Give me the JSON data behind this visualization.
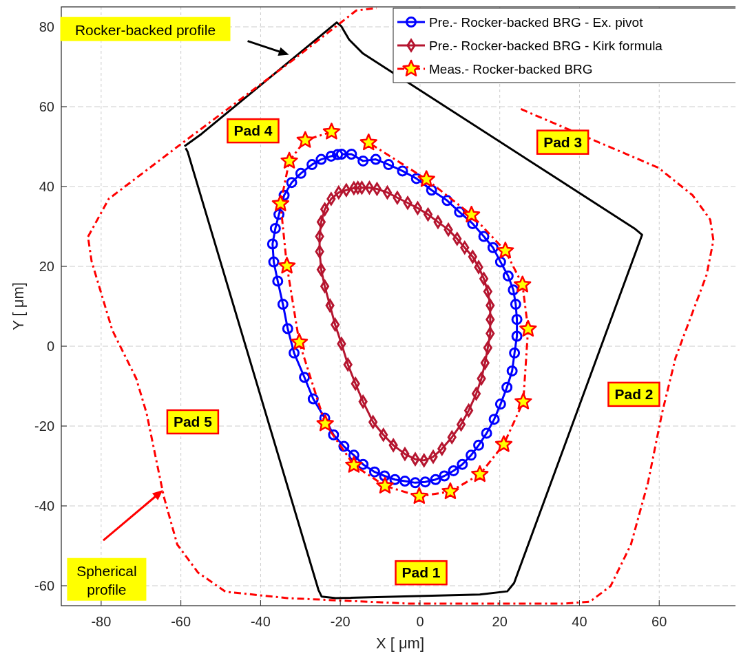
{
  "chart_data": {
    "type": "line",
    "xlabel": "X [ μm]",
    "ylabel": "Y [ μm]",
    "xlim": [
      -90,
      80
    ],
    "ylim": [
      -65,
      85
    ],
    "xticks": [
      -80,
      -60,
      -40,
      -20,
      0,
      20,
      40,
      60
    ],
    "yticks": [
      -60,
      -40,
      -20,
      0,
      20,
      40,
      60,
      80
    ],
    "grid": true,
    "legend": "top right",
    "series": [
      {
        "color": "#000000",
        "marker": "none",
        "line_style": "solid",
        "x": [
          -59.1,
          -54.8,
          -20.9,
          -19.8,
          -17.8,
          -14.3,
          53.8,
          55.7,
          23.6,
          21.9,
          15.0,
          -21.2,
          -24.7,
          -25.5,
          -58.3,
          -58.8
        ],
        "values": [
          50.1,
          53.2,
          81.1,
          80.2,
          76.8,
          73.3,
          29.5,
          27.9,
          -59.3,
          -61.4,
          -62.2,
          -63.1,
          -62.7,
          -61.0,
          48.7,
          49.6
        ]
      },
      {
        "color": "#ff0000",
        "marker": "none",
        "line_style": "dashed",
        "x": [
          -83.3,
          -78.1,
          -59.1,
          -31.6,
          -16.0,
          -10.9,
          null,
          25.3,
          59.8,
          68.4,
          72.8,
          73.6,
          71.9,
          64.1,
          60.7,
          57.2,
          52.9,
          47.8,
          42.6,
          35.7,
          -2.2,
          -33.3,
          -48.8,
          -55.7,
          -60.9,
          -64.3,
          -68.6,
          -71.2,
          -77.2,
          -82.4,
          -83.3
        ],
        "values": [
          27.4,
          36.9,
          51.3,
          71.9,
          84.1,
          84.7,
          null,
          59.4,
          44.7,
          37.8,
          31.7,
          26.5,
          17.9,
          -2.9,
          -16.8,
          -34.1,
          -49.7,
          -60.1,
          -64.0,
          -64.5,
          -64.5,
          -63.1,
          -61.5,
          -56.7,
          -49.7,
          -37.6,
          -16.8,
          -8.1,
          4.0,
          21.3,
          27.4
        ]
      },
      {
        "name": "Pre.- Rocker-backed BRG - Ex. pivot",
        "color": "#0000ff",
        "marker": "circle",
        "line_style": "solid",
        "x": [
          -19.7,
          -17.2,
          -14.3,
          -11.1,
          -7.9,
          -4.4,
          -0.9,
          2.9,
          6.8,
          9.9,
          13.2,
          16.0,
          18.3,
          20.2,
          22.1,
          23.4,
          24.0,
          24.3,
          24.3,
          23.7,
          23.1,
          21.8,
          20.2,
          18.6,
          16.7,
          14.7,
          12.8,
          10.6,
          8.4,
          6.1,
          3.9,
          1.3,
          -1.2,
          -3.8,
          -6.3,
          -8.9,
          -11.4,
          -14.3,
          -16.6,
          -19.1,
          -21.7,
          -23.9,
          -26.8,
          -29.0,
          -31.6,
          -33.2,
          -34.4,
          -35.7,
          -36.7,
          -37.0,
          -36.3,
          -35.4,
          -34.1,
          -32.2,
          -29.9,
          -27.1,
          -24.8,
          -22.3,
          -20.7
        ],
        "values": [
          48.1,
          48.1,
          46.4,
          46.8,
          45.5,
          43.9,
          42.0,
          39.1,
          36.5,
          33.6,
          30.7,
          27.5,
          24.7,
          21.1,
          17.6,
          14.1,
          10.5,
          6.7,
          2.5,
          -1.7,
          -6.2,
          -10.3,
          -14.5,
          -18.3,
          -21.8,
          -24.8,
          -27.3,
          -29.6,
          -31.2,
          -32.5,
          -33.4,
          -34.0,
          -34.2,
          -33.8,
          -33.4,
          -32.5,
          -31.5,
          -29.6,
          -27.3,
          -25.1,
          -22.2,
          -18.0,
          -13.2,
          -7.8,
          -1.7,
          4.4,
          10.5,
          16.3,
          21.1,
          25.6,
          29.5,
          33.0,
          37.8,
          41.0,
          43.3,
          45.5,
          46.8,
          47.6,
          48.0
        ]
      },
      {
        "name": "Pre.- Rocker-backed BRG - Kirk formula",
        "color": "#b5152f",
        "marker": "diamond",
        "line_style": "solid",
        "x": [
          -14.6,
          -12.7,
          -10.8,
          -8.2,
          -5.7,
          -3.1,
          -0.6,
          2.0,
          4.5,
          7.1,
          9.3,
          11.2,
          13.2,
          14.7,
          16.0,
          17.0,
          17.6,
          17.6,
          17.6,
          17.0,
          16.3,
          15.4,
          14.1,
          12.2,
          10.3,
          8.0,
          5.5,
          3.3,
          1.0,
          -1.2,
          -3.8,
          -6.7,
          -9.2,
          -11.8,
          -14.3,
          -16.2,
          -18.1,
          -19.7,
          -21.3,
          -22.6,
          -23.9,
          -24.8,
          -25.2,
          -25.2,
          -24.8,
          -23.9,
          -22.3,
          -20.4,
          -18.5,
          -16.6,
          -15.6
        ],
        "values": [
          39.7,
          39.7,
          39.4,
          38.5,
          37.2,
          35.9,
          34.6,
          33.0,
          31.1,
          29.2,
          26.9,
          24.7,
          22.4,
          19.8,
          16.9,
          13.7,
          10.2,
          6.7,
          3.2,
          -0.4,
          -4.2,
          -8.1,
          -11.9,
          -16.1,
          -19.6,
          -22.8,
          -25.7,
          -27.7,
          -28.6,
          -28.3,
          -27.0,
          -24.8,
          -22.2,
          -19.0,
          -13.9,
          -9.4,
          -4.6,
          0.6,
          5.4,
          10.2,
          15.0,
          19.2,
          23.7,
          27.5,
          31.1,
          34.3,
          36.9,
          38.5,
          39.1,
          39.6,
          39.7
        ]
      },
      {
        "name": "Meas.- Rocker-backed BRG",
        "color": "#ff0000",
        "marker": "star",
        "line_style": "dashed",
        "x": [
          -22.2,
          -28.8,
          -32.8,
          -35.0,
          -33.4,
          -30.3,
          -23.8,
          -16.6,
          -8.8,
          -0.2,
          7.6,
          15.0,
          21.0,
          25.9,
          27.1,
          25.7,
          21.4,
          12.9,
          1.6,
          -12.9
        ],
        "values": [
          53.7,
          51.6,
          46.4,
          35.7,
          20.1,
          1.0,
          -19.4,
          -29.8,
          -35.0,
          -37.6,
          -36.4,
          -32.1,
          -24.6,
          -13.9,
          4.3,
          15.4,
          23.9,
          32.9,
          41.8,
          51.0
        ]
      }
    ],
    "annotations": [
      "Rocker-backed profile",
      "Spherical profile",
      "Pad 1",
      "Pad 2",
      "Pad 3",
      "Pad 4",
      "Pad 5"
    ]
  }
}
